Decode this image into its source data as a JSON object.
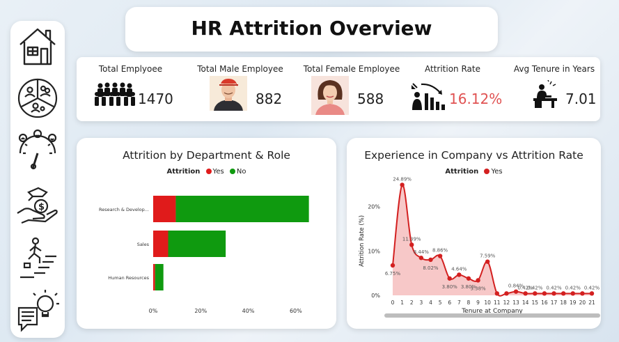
{
  "header": {
    "title": "HR Attrition Overview"
  },
  "nav": {
    "items": [
      {
        "icon": "home-icon"
      },
      {
        "icon": "demographics-icon"
      },
      {
        "icon": "satisfaction-gauge-icon"
      },
      {
        "icon": "salary-hand-icon"
      },
      {
        "icon": "career-ladder-icon"
      },
      {
        "icon": "insights-lightbulb-icon"
      }
    ]
  },
  "kpis": {
    "total": {
      "title": "Total Emplyoee",
      "value": "1470",
      "icon": "employees-group-icon"
    },
    "male": {
      "title": "Total Male Employee",
      "value": "882",
      "icon": "male-avatar-icon"
    },
    "female": {
      "title": "Total Female Employee",
      "value": "588",
      "icon": "female-avatar-icon"
    },
    "attrition": {
      "title": "Attrition Rate",
      "value": "16.12%",
      "icon": "attrition-down-icon",
      "color": "#e05252"
    },
    "tenure": {
      "title": "Avg Tenure in Years",
      "value": "7.01",
      "icon": "desk-worker-icon"
    }
  },
  "colors": {
    "yes": "#e01b1b",
    "no": "#0f9a0f",
    "line": "#d32020",
    "area": "#f7c8c8"
  },
  "chart_data": [
    {
      "type": "bar",
      "orientation": "horizontal",
      "stacked": true,
      "title": "Attrition by Department & Role",
      "legend": {
        "title": "Attrition",
        "entries": [
          "Yes",
          "No"
        ],
        "position": "top"
      },
      "categories": [
        "Research & Develop...",
        "Sales",
        "Human Resources"
      ],
      "series": [
        {
          "name": "Yes",
          "values": [
            9.5,
            6.3,
            0.8
          ]
        },
        {
          "name": "No",
          "values": [
            56.0,
            24.2,
            3.5
          ]
        }
      ],
      "xlim": [
        0,
        70
      ],
      "xticks": [
        "0%",
        "20%",
        "40%",
        "60%"
      ],
      "grid": false
    },
    {
      "type": "area",
      "title": "Experience in Company vs Attrition Rate",
      "legend": {
        "title": "Attrition",
        "entries": [
          "Yes"
        ],
        "position": "top"
      },
      "xlabel": "Tenure at Company",
      "ylabel": "Attrition Rate (%)",
      "x": [
        0,
        1,
        2,
        3,
        4,
        5,
        6,
        7,
        8,
        9,
        10,
        11,
        12,
        13,
        14,
        15,
        16,
        17,
        18,
        19,
        20,
        21
      ],
      "values": [
        6.75,
        24.89,
        11.39,
        8.44,
        8.02,
        8.86,
        3.8,
        4.64,
        3.8,
        3.38,
        7.59,
        0.42,
        0.42,
        0.84,
        0.42,
        0.42,
        0.42,
        0.42,
        0.42,
        0.42,
        0.42,
        0.42
      ],
      "data_labels": [
        {
          "x": 0,
          "text": "6.75%"
        },
        {
          "x": 1,
          "text": "24.89%"
        },
        {
          "x": 2,
          "text": "11.39%"
        },
        {
          "x": 3,
          "text": "8.44%"
        },
        {
          "x": 4,
          "text": "8.02%"
        },
        {
          "x": 5,
          "text": "8.86%"
        },
        {
          "x": 6,
          "text": "3.80%"
        },
        {
          "x": 7,
          "text": "4.64%"
        },
        {
          "x": 8,
          "text": "3.80%"
        },
        {
          "x": 9,
          "text": "3.38%"
        },
        {
          "x": 10,
          "text": "7.59%"
        },
        {
          "x": 13,
          "text": "0.84%"
        },
        {
          "x": 14,
          "text": "0.42%"
        },
        {
          "x": 15,
          "text": "0.42%"
        },
        {
          "x": 17,
          "text": "0.42%"
        },
        {
          "x": 19,
          "text": "0.42%"
        },
        {
          "x": 21,
          "text": "0.42%"
        }
      ],
      "ylim": [
        0,
        27
      ],
      "yticks": [
        "0%",
        "10%",
        "20%"
      ],
      "grid": false
    }
  ]
}
